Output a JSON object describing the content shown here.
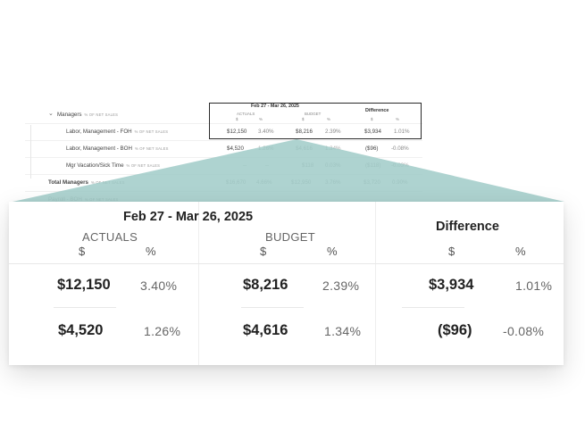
{
  "background_report": {
    "header": {
      "date_range": "Feb 27 - Mar 26, 2025",
      "actuals": "ACTUALS",
      "budget": "BUDGET",
      "difference": "Difference",
      "dollar": "$",
      "percent": "%"
    },
    "rows": [
      {
        "label": "Managers",
        "sub": "% OF NET SALES",
        "actual": "",
        "actual_pct": "",
        "budget": "",
        "budget_pct": "",
        "diff": "",
        "diff_pct": ""
      },
      {
        "label": "Labor, Management - FOH",
        "sub": "% OF NET SALES",
        "actual": "$12,150",
        "actual_pct": "3.40%",
        "budget": "$8,216",
        "budget_pct": "2.39%",
        "diff": "$3,934",
        "diff_pct": "1.01%"
      },
      {
        "label": "Labor, Management - BOH",
        "sub": "% OF NET SALES",
        "actual": "$4,520",
        "actual_pct": "1.26%",
        "budget": "$4,616",
        "budget_pct": "1.34%",
        "diff": "($96)",
        "diff_pct": "-0.08%"
      },
      {
        "label": "Mgr Vacation/Sick Time",
        "sub": "% OF NET SALES",
        "actual": "--",
        "actual_pct": "--",
        "budget": "$118",
        "budget_pct": "0.03%",
        "diff": "($118)",
        "diff_pct": "-0.03%"
      },
      {
        "label": "Total Managers",
        "sub": "% OF NET SALES",
        "actual": "$16,670",
        "actual_pct": "4.66%",
        "budget": "$12,950",
        "budget_pct": "3.76%",
        "diff": "$3,720",
        "diff_pct": "0.90%"
      },
      {
        "label": "Payroll - BOH",
        "sub": "% OF NET SALES"
      }
    ]
  },
  "zoom": {
    "date_range": "Feb 27 - Mar 26, 2025",
    "actuals_label": "ACTUALS",
    "budget_label": "BUDGET",
    "difference_label": "Difference",
    "dollar": "$",
    "percent": "%",
    "rows": [
      {
        "actual": "$12,150",
        "actual_pct": "3.40%",
        "budget": "$8,216",
        "budget_pct": "2.39%",
        "diff": "$3,934",
        "diff_pct": "1.01%"
      },
      {
        "actual": "$4,520",
        "actual_pct": "1.26%",
        "budget": "$4,616",
        "budget_pct": "1.34%",
        "diff": "($96)",
        "diff_pct": "-0.08%"
      }
    ]
  },
  "colors": {
    "projection": "#9cc9c6",
    "text": "#222222",
    "muted": "#666666"
  }
}
